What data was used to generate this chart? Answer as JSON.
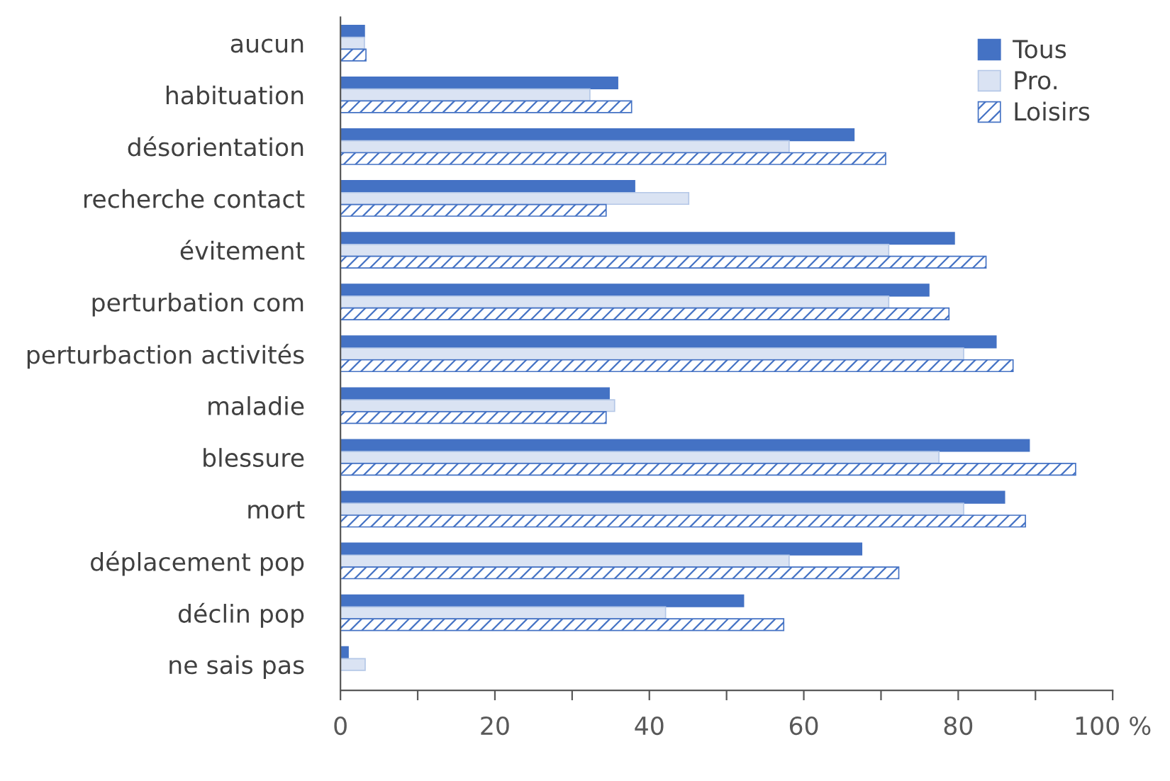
{
  "chart_data": {
    "type": "bar",
    "orientation": "horizontal",
    "categories": [
      "aucun",
      "habituation",
      "désorientation",
      "recherche contact",
      "évitement",
      "perturbation com",
      "perturbaction activités",
      "maladie",
      "blessure",
      "mort",
      "déplacement pop",
      "déclin pop",
      "ne sais pas"
    ],
    "series": [
      {
        "name": "Tous",
        "color": "#4472c4",
        "values": [
          3.1,
          35.9,
          66.5,
          38.1,
          79.5,
          76.2,
          84.9,
          34.8,
          89.2,
          86.0,
          67.5,
          52.2,
          1.0
        ]
      },
      {
        "name": "Pro.",
        "color": "#dae3f3",
        "values": [
          3.1,
          32.3,
          58.1,
          45.1,
          71.0,
          71.0,
          80.7,
          35.5,
          77.5,
          80.7,
          58.1,
          42.1,
          3.2
        ]
      },
      {
        "name": "Loisirs",
        "color": "#4472c4",
        "values": [
          3.3,
          37.7,
          70.6,
          34.4,
          83.6,
          78.8,
          87.1,
          34.4,
          95.2,
          88.7,
          72.3,
          57.4,
          null
        ]
      }
    ],
    "xlim": [
      0,
      100
    ],
    "xticks": [
      0,
      {
        "value": 10,
        "label": null
      },
      20,
      {
        "value": 30,
        "label": null
      },
      40,
      {
        "value": 50,
        "label": null
      },
      60,
      {
        "value": 70,
        "label": null
      },
      80,
      {
        "value": 90,
        "label": null
      },
      {
        "value": 100,
        "label": "100 %"
      }
    ],
    "grid": false,
    "legend": "top right"
  }
}
